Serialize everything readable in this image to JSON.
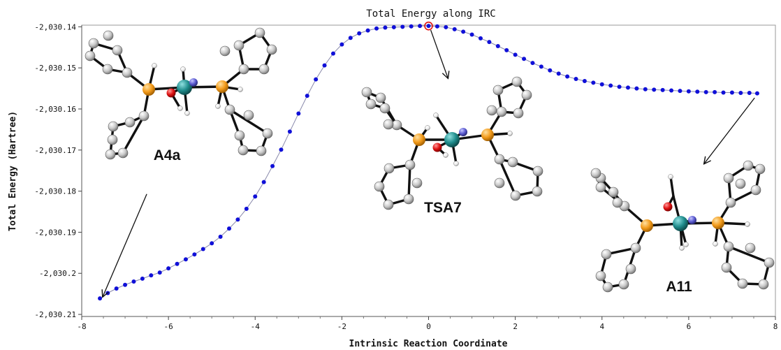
{
  "chart_data": {
    "type": "scatter",
    "title": "Total Energy along IRC",
    "xlabel": "Intrinsic Reaction Coordinate",
    "ylabel": "Total Energy (Hartree)",
    "xlim": [
      -8,
      8
    ],
    "ylim": [
      -2030.2105,
      -2030.1396
    ],
    "x_ticks": [
      {
        "value": -8,
        "label": "-8"
      },
      {
        "value": -6,
        "label": "-6"
      },
      {
        "value": -4,
        "label": "-4"
      },
      {
        "value": -2,
        "label": "-2"
      },
      {
        "value": 0,
        "label": "0"
      },
      {
        "value": 2,
        "label": "2"
      },
      {
        "value": 4,
        "label": "4"
      },
      {
        "value": 6,
        "label": "6"
      },
      {
        "value": 8,
        "label": "8"
      }
    ],
    "y_ticks": [
      {
        "value": -2030.14,
        "label": "-2,030.14"
      },
      {
        "value": -2030.15,
        "label": "-2,030.15"
      },
      {
        "value": -2030.16,
        "label": "-2,030.16"
      },
      {
        "value": -2030.17,
        "label": "-2,030.17"
      },
      {
        "value": -2030.18,
        "label": "-2,030.18"
      },
      {
        "value": -2030.19,
        "label": "-2,030.19"
      },
      {
        "value": -2030.2,
        "label": "-2,030.2"
      },
      {
        "value": -2030.21,
        "label": "-2,030.21"
      }
    ],
    "grid": false,
    "series": [
      {
        "color": "#1010d8",
        "x": [
          -7.58,
          -7.4,
          -7.2,
          -7.0,
          -6.8,
          -6.6,
          -6.4,
          -6.2,
          -6.0,
          -5.8,
          -5.6,
          -5.4,
          -5.2,
          -5.0,
          -4.8,
          -4.6,
          -4.4,
          -4.2,
          -4.0,
          -3.8,
          -3.6,
          -3.4,
          -3.2,
          -3.0,
          -2.8,
          -2.6,
          -2.4,
          -2.2,
          -2.0,
          -1.8,
          -1.6,
          -1.4,
          -1.2,
          -1.0,
          -0.8,
          -0.6,
          -0.4,
          -0.2,
          0.0,
          0.2,
          0.4,
          0.6,
          0.8,
          1.0,
          1.2,
          1.4,
          1.6,
          1.8,
          2.0,
          2.2,
          2.4,
          2.6,
          2.8,
          3.0,
          3.2,
          3.4,
          3.6,
          3.8,
          4.0,
          4.2,
          4.4,
          4.6,
          4.8,
          5.0,
          5.2,
          5.4,
          5.6,
          5.8,
          6.0,
          6.2,
          6.4,
          6.6,
          6.8,
          7.0,
          7.2,
          7.4,
          7.58
        ],
        "y": [
          -2030.2061,
          -2030.2048,
          -2030.2037,
          -2030.2028,
          -2030.202,
          -2030.2013,
          -2030.2005,
          -2030.1998,
          -2030.1988,
          -2030.1977,
          -2030.1966,
          -2030.1954,
          -2030.1941,
          -2030.1927,
          -2030.1911,
          -2030.1891,
          -2030.1869,
          -2030.1843,
          -2030.1813,
          -2030.1778,
          -2030.1739,
          -2030.1699,
          -2030.1655,
          -2030.1611,
          -2030.1568,
          -2030.1528,
          -2030.1494,
          -2030.1465,
          -2030.1443,
          -2030.1427,
          -2030.1416,
          -2030.1409,
          -2030.1404,
          -2030.1402,
          -2030.1401,
          -2030.14,
          -2030.1399,
          -2030.1398,
          -2030.1398,
          -2030.1399,
          -2030.1401,
          -2030.1406,
          -2030.1412,
          -2030.1419,
          -2030.1428,
          -2030.1437,
          -2030.1447,
          -2030.1457,
          -2030.1468,
          -2030.1478,
          -2030.1488,
          -2030.1497,
          -2030.1506,
          -2030.1514,
          -2030.1521,
          -2030.1527,
          -2030.1532,
          -2030.1536,
          -2030.154,
          -2030.1543,
          -2030.1546,
          -2030.1548,
          -2030.155,
          -2030.1552,
          -2030.1553,
          -2030.1554,
          -2030.1555,
          -2030.1556,
          -2030.1557,
          -2030.1558,
          -2030.1559,
          -2030.1559,
          -2030.156,
          -2030.156,
          -2030.1561,
          -2030.1561,
          -2030.1562
        ]
      }
    ],
    "highlight_point": {
      "x": 0.0,
      "y": -2030.1398,
      "color": "#e01010"
    },
    "annotations": [
      {
        "label": "A4a",
        "arrow_from": [
          -6.5,
          -2030.1807
        ],
        "arrow_to": [
          -7.52,
          -2030.2058
        ]
      },
      {
        "label": "TSA7",
        "arrow_from": [
          0.05,
          -2030.1408
        ],
        "arrow_to": [
          0.45,
          -2030.1526
        ]
      },
      {
        "label": "A11",
        "arrow_from": [
          7.52,
          -2030.1573
        ],
        "arrow_to": [
          6.35,
          -2030.1734
        ]
      }
    ]
  },
  "colors": {
    "atom_carbon": "#c8c8c8",
    "atom_phosphorus": "#f29a1a",
    "atom_metal": "#1f8c8c",
    "atom_oxygen": "#dd1010",
    "atom_nitrogen": "#5a5ad0",
    "atom_hydrogen": "#f0f0f0",
    "bond": "#111111"
  }
}
